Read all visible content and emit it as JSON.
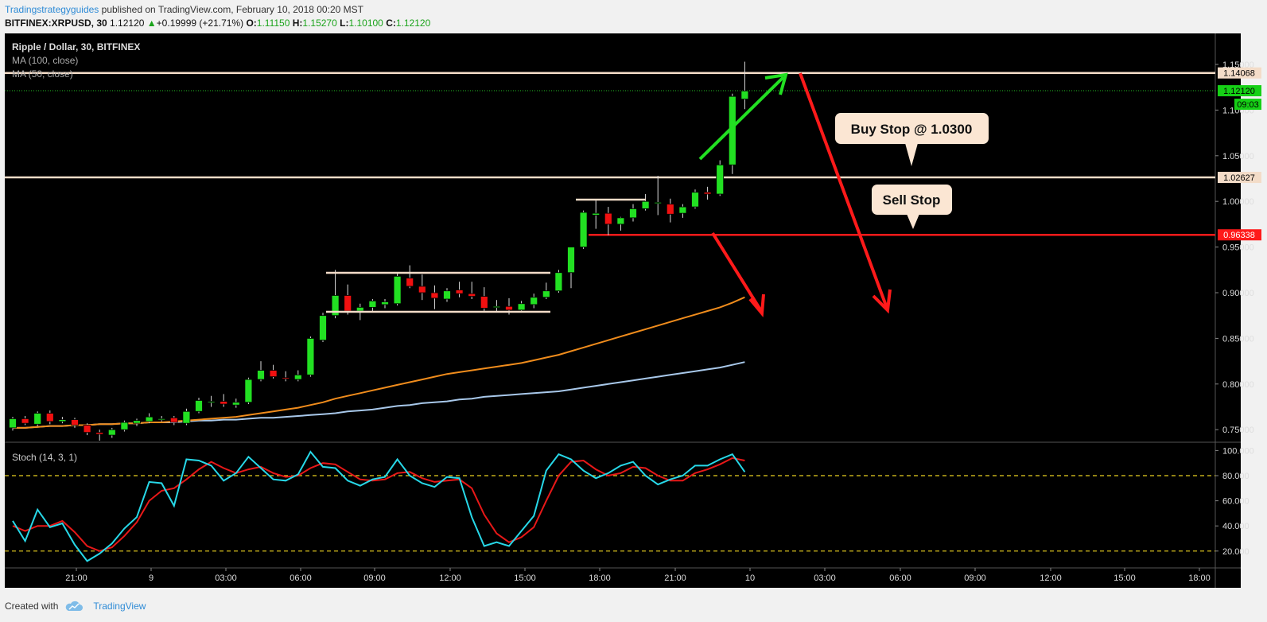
{
  "header": {
    "author": "Tradingstrategyguides",
    "published": "published on TradingView.com, February 10, 2018 00:20 MST"
  },
  "ticker": {
    "symbol": "BITFINEX:XRPUSD, 30",
    "last": "1.12120",
    "change": "+0.19999 (+21.71%)",
    "o_label": "O:",
    "o": "1.11150",
    "h_label": "H:",
    "h": "1.15270",
    "l_label": "L:",
    "l": "1.10100",
    "c_label": "C:",
    "c": "1.12120"
  },
  "legend": {
    "title": "Ripple / Dollar, 30, BITFINEX",
    "ma100": "MA (100, close)",
    "ma50": "MA (50, close)",
    "stoch": "Stoch (14, 3, 1)"
  },
  "annotations": {
    "buy_stop": "Buy Stop @ 1.0300",
    "sell_stop": "Sell Stop"
  },
  "footer": {
    "created": "Created with",
    "brand": "TradingView"
  },
  "colors": {
    "bg": "#000000",
    "up": "#22e022",
    "down": "#f01010",
    "ma100": "#a8c8ea",
    "ma50": "#f08c1c",
    "hline": "#f3dcc8",
    "red_line": "#ff1a1a",
    "price_tag": "#16d016",
    "stoch_k": "#27d8e8",
    "stoch_d": "#e81818"
  },
  "chart_data": {
    "type": "candlestick",
    "title": "Ripple / Dollar, 30, BITFINEX",
    "y_ticks": [
      "1.15000",
      "1.10000",
      "1.05000",
      "1.00000",
      "0.95000",
      "0.90000",
      "0.85000",
      "0.80000",
      "0.75000"
    ],
    "ylim": [
      0.728,
      1.17
    ],
    "x_ticks": [
      "21:00",
      "9",
      "03:00",
      "06:00",
      "09:00",
      "12:00",
      "15:00",
      "18:00",
      "21:00",
      "10",
      "03:00",
      "06:00",
      "09:00",
      "12:00",
      "15:00",
      "18:00"
    ],
    "price_tags": [
      {
        "value": "1.14068",
        "kind": "hline"
      },
      {
        "value": "1.12120",
        "kind": "last"
      },
      {
        "value": "09:03",
        "kind": "timer"
      },
      {
        "value": "1.02627",
        "kind": "hline"
      },
      {
        "value": "0.96338",
        "kind": "red"
      }
    ],
    "hlines": [
      1.14068,
      1.02627
    ],
    "red_line": 0.96338,
    "candles": [
      [
        0.752,
        0.764,
        0.749,
        0.762
      ],
      [
        0.762,
        0.765,
        0.755,
        0.757
      ],
      [
        0.756,
        0.77,
        0.754,
        0.768
      ],
      [
        0.768,
        0.771,
        0.756,
        0.759
      ],
      [
        0.759,
        0.764,
        0.757,
        0.761
      ],
      [
        0.761,
        0.763,
        0.752,
        0.755
      ],
      [
        0.755,
        0.757,
        0.744,
        0.747
      ],
      [
        0.747,
        0.75,
        0.738,
        0.745
      ],
      [
        0.744,
        0.752,
        0.741,
        0.75
      ],
      [
        0.75,
        0.76,
        0.748,
        0.758
      ],
      [
        0.757,
        0.762,
        0.754,
        0.76
      ],
      [
        0.759,
        0.768,
        0.757,
        0.764
      ],
      [
        0.762,
        0.765,
        0.759,
        0.762
      ],
      [
        0.763,
        0.765,
        0.755,
        0.758
      ],
      [
        0.757,
        0.773,
        0.755,
        0.77
      ],
      [
        0.77,
        0.785,
        0.768,
        0.782
      ],
      [
        0.78,
        0.787,
        0.775,
        0.781
      ],
      [
        0.781,
        0.789,
        0.775,
        0.778
      ],
      [
        0.777,
        0.784,
        0.774,
        0.78
      ],
      [
        0.78,
        0.807,
        0.778,
        0.805
      ],
      [
        0.805,
        0.825,
        0.803,
        0.815
      ],
      [
        0.815,
        0.821,
        0.806,
        0.808
      ],
      [
        0.807,
        0.814,
        0.803,
        0.806
      ],
      [
        0.805,
        0.815,
        0.803,
        0.81
      ],
      [
        0.81,
        0.852,
        0.808,
        0.85
      ],
      [
        0.848,
        0.878,
        0.846,
        0.875
      ],
      [
        0.875,
        0.925,
        0.872,
        0.897
      ],
      [
        0.897,
        0.909,
        0.876,
        0.88
      ],
      [
        0.88,
        0.888,
        0.87,
        0.884
      ],
      [
        0.884,
        0.893,
        0.88,
        0.891
      ],
      [
        0.887,
        0.893,
        0.883,
        0.89
      ],
      [
        0.888,
        0.921,
        0.886,
        0.918
      ],
      [
        0.916,
        0.93,
        0.905,
        0.907
      ],
      [
        0.907,
        0.92,
        0.892,
        0.9
      ],
      [
        0.9,
        0.908,
        0.882,
        0.894
      ],
      [
        0.893,
        0.905,
        0.89,
        0.902
      ],
      [
        0.903,
        0.912,
        0.895,
        0.899
      ],
      [
        0.899,
        0.912,
        0.893,
        0.896
      ],
      [
        0.896,
        0.906,
        0.88,
        0.883
      ],
      [
        0.884,
        0.892,
        0.88,
        0.885
      ],
      [
        0.885,
        0.894,
        0.876,
        0.881
      ],
      [
        0.881,
        0.891,
        0.88,
        0.888
      ],
      [
        0.887,
        0.899,
        0.883,
        0.895
      ],
      [
        0.895,
        0.911,
        0.893,
        0.902
      ],
      [
        0.902,
        0.925,
        0.9,
        0.922
      ],
      [
        0.922,
        0.948,
        0.905,
        0.95
      ],
      [
        0.95,
        0.99,
        0.948,
        0.988
      ],
      [
        0.985,
        1.001,
        0.97,
        0.987
      ],
      [
        0.987,
        0.994,
        0.963,
        0.975
      ],
      [
        0.975,
        0.983,
        0.968,
        0.982
      ],
      [
        0.982,
        0.997,
        0.978,
        0.992
      ],
      [
        0.992,
        1.008,
        0.99,
        1.0
      ],
      [
        0.998,
        1.028,
        0.985,
        0.999
      ],
      [
        0.997,
        1.003,
        0.977,
        0.986
      ],
      [
        0.987,
        0.997,
        0.982,
        0.994
      ],
      [
        0.994,
        1.013,
        0.992,
        1.01
      ],
      [
        1.01,
        1.016,
        1.002,
        1.008
      ],
      [
        1.008,
        1.045,
        1.006,
        1.04
      ],
      [
        1.04,
        1.118,
        1.03,
        1.115
      ],
      [
        1.112,
        1.153,
        1.101,
        1.121
      ]
    ],
    "series": [
      {
        "name": "MA (100, close)",
        "values": [
          0.752,
          0.752,
          0.753,
          0.754,
          0.754,
          0.755,
          0.755,
          0.756,
          0.756,
          0.757,
          0.757,
          0.758,
          0.758,
          0.758,
          0.759,
          0.76,
          0.76,
          0.761,
          0.761,
          0.762,
          0.763,
          0.763,
          0.764,
          0.765,
          0.766,
          0.767,
          0.768,
          0.77,
          0.771,
          0.772,
          0.774,
          0.776,
          0.777,
          0.779,
          0.78,
          0.781,
          0.783,
          0.784,
          0.786,
          0.787,
          0.788,
          0.789,
          0.79,
          0.791,
          0.792,
          0.794,
          0.796,
          0.798,
          0.8,
          0.802,
          0.804,
          0.806,
          0.808,
          0.81,
          0.812,
          0.814,
          0.816,
          0.818,
          0.821,
          0.824
        ]
      },
      {
        "name": "MA (50, close)",
        "values": [
          0.752,
          0.752,
          0.753,
          0.754,
          0.754,
          0.755,
          0.755,
          0.756,
          0.756,
          0.757,
          0.757,
          0.758,
          0.758,
          0.759,
          0.76,
          0.761,
          0.762,
          0.763,
          0.764,
          0.766,
          0.768,
          0.77,
          0.772,
          0.774,
          0.777,
          0.78,
          0.784,
          0.787,
          0.79,
          0.793,
          0.796,
          0.799,
          0.802,
          0.805,
          0.808,
          0.811,
          0.813,
          0.815,
          0.817,
          0.819,
          0.821,
          0.823,
          0.826,
          0.829,
          0.832,
          0.836,
          0.84,
          0.844,
          0.848,
          0.852,
          0.856,
          0.86,
          0.864,
          0.868,
          0.872,
          0.876,
          0.88,
          0.884,
          0.889,
          0.895
        ]
      }
    ],
    "stoch": {
      "y_ticks": [
        "100.000",
        "80.000",
        "60.000",
        "40.000",
        "20.000"
      ],
      "levels": [
        80,
        20
      ],
      "k": [
        44,
        28,
        53,
        39,
        42,
        25,
        12,
        18,
        26,
        38,
        47,
        75,
        74,
        56,
        93,
        92,
        88,
        76,
        82,
        95,
        86,
        77,
        76,
        81,
        99,
        87,
        86,
        76,
        72,
        77,
        79,
        93,
        80,
        74,
        71,
        79,
        78,
        47,
        24,
        27,
        24,
        36,
        48,
        84,
        97,
        93,
        84,
        78,
        82,
        88,
        91,
        80,
        73,
        77,
        80,
        88,
        88,
        93,
        97,
        83
      ],
      "d": [
        40,
        36,
        40,
        40,
        44,
        35,
        24,
        20,
        23,
        32,
        43,
        60,
        68,
        70,
        77,
        85,
        91,
        86,
        82,
        85,
        87,
        82,
        79,
        80,
        86,
        90,
        89,
        83,
        77,
        76,
        77,
        82,
        83,
        78,
        75,
        76,
        77,
        70,
        49,
        34,
        27,
        31,
        39,
        60,
        80,
        91,
        92,
        85,
        80,
        82,
        87,
        86,
        80,
        76,
        76,
        82,
        85,
        89,
        94,
        92
      ]
    }
  }
}
